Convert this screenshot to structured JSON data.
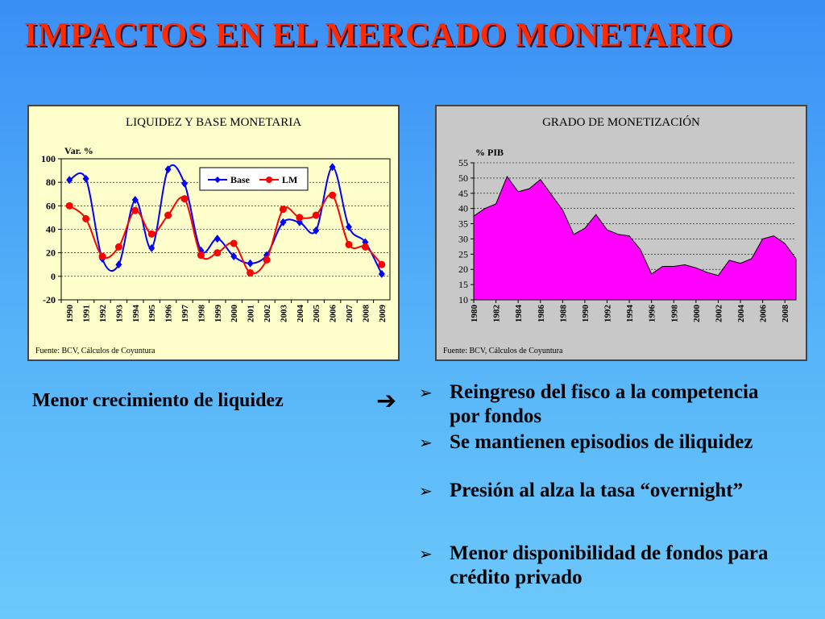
{
  "slide": {
    "title": "IMPACTOS EN EL MERCADO MONETARIO",
    "left_note": "Menor crecimiento de liquidez",
    "arrow": "➔",
    "bullet_mark": "➢",
    "bullets": [
      "Reingreso del fisco a la competencia por fondos",
      "Se mantienen episodios de iliquidez",
      "Presión al alza la tasa “overnight”",
      "Menor disponibilidad de fondos para crédito privado"
    ]
  },
  "chart_data": [
    {
      "type": "line",
      "title": "LIQUIDEZ Y BASE MONETARIA",
      "ylabel": "Var. %",
      "source": "Fuente: BCV, Cálculos de Coyuntura",
      "x": [
        "1990",
        "1991",
        "1992",
        "1993",
        "1994",
        "1995",
        "1996",
        "1997",
        "1998",
        "1999",
        "2000",
        "2001",
        "2002",
        "2003",
        "2004",
        "2005",
        "2006",
        "2007",
        "2008",
        "2009"
      ],
      "ylim": [
        -20,
        100
      ],
      "yticks": [
        "-20",
        "0",
        "20",
        "40",
        "60",
        "80",
        "100"
      ],
      "legend_position": "top-right",
      "grid": true,
      "series": [
        {
          "name": "Base",
          "color": "#0000ff",
          "marker": "diamond",
          "values": [
            82,
            83,
            15,
            10,
            65,
            24,
            91,
            79,
            22,
            32,
            17,
            11,
            18,
            46,
            46,
            39,
            93,
            42,
            29,
            2
          ]
        },
        {
          "name": "LM",
          "color": "#ff0000",
          "marker": "circle",
          "values": [
            60,
            49,
            17,
            25,
            56,
            36,
            52,
            66,
            18,
            20,
            28,
            3,
            14,
            57,
            50,
            52,
            69,
            27,
            25,
            10
          ]
        }
      ]
    },
    {
      "type": "area",
      "title": "GRADO DE MONETIZACIÓN",
      "ylabel": "% PIB",
      "source": "Fuente: BCV, Cálculos de Coyuntura",
      "x_start": 1980,
      "x_end": 2009,
      "xticks": [
        "1980",
        "1982",
        "1984",
        "1986",
        "1988",
        "1990",
        "1992",
        "1994",
        "1996",
        "1998",
        "2000",
        "2002",
        "2004",
        "2006",
        "2008"
      ],
      "ylim": [
        10,
        55
      ],
      "yticks": [
        "10",
        "15",
        "20",
        "25",
        "30",
        "35",
        "40",
        "45",
        "50",
        "55"
      ],
      "grid": true,
      "color": "#ff00ff",
      "series": [
        {
          "name": "",
          "values": [
            37.5,
            40,
            41.5,
            50.5,
            45.5,
            46.5,
            49.5,
            44.5,
            39.5,
            31.5,
            33.5,
            38,
            33,
            31.5,
            31,
            26.5,
            18.5,
            21,
            21,
            21.5,
            20.5,
            19,
            18,
            23,
            22,
            23.5,
            30,
            31,
            28.5,
            23.5
          ]
        }
      ]
    }
  ]
}
